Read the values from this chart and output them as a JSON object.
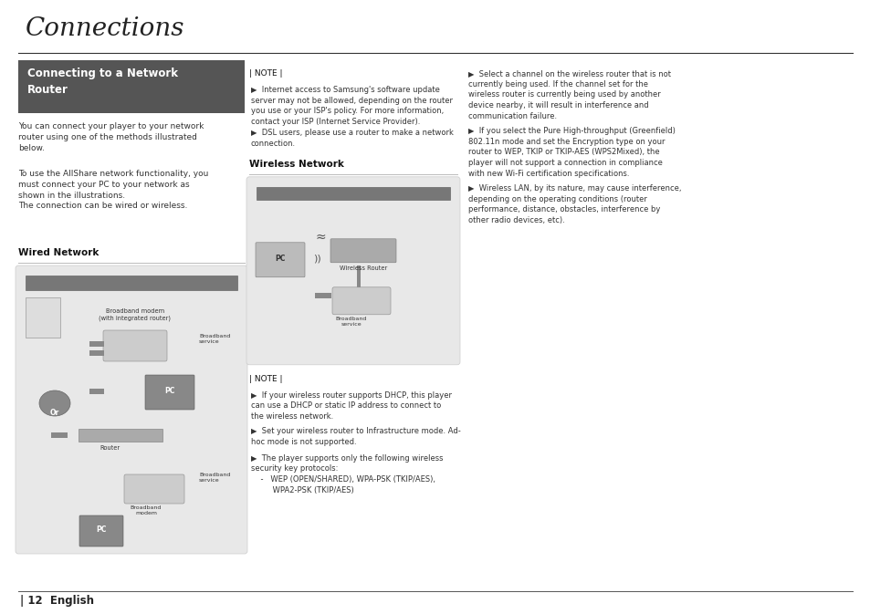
{
  "page_bg": "#ffffff",
  "title": "Connections",
  "title_font_size": 20,
  "title_color": "#222222",
  "header_bg": "#555555",
  "header_text_color": "#ffffff",
  "header_text": "Connecting to a Network\nRouter",
  "header_font_size": 8.5,
  "body_font_size": 6.5,
  "body_color": "#333333",
  "bold_color": "#111111",
  "note_label": "| NOTE |",
  "footer_text": "| 12  English",
  "wired_bg": "#e8e8e8",
  "wireless_bg": "#e8e8e8",
  "col1_body1": "You can connect your player to your network\nrouter using one of the methods illustrated\nbelow.",
  "col1_body2": "To use the AllShare network functionality, you\nmust connect your PC to your network as\nshown in the illustrations.\nThe connection can be wired or wireless.",
  "wired_label": "Wired Network",
  "wireless_label": "Wireless Network",
  "col2_note_items": [
    "Internet access to Samsung's software update\nserver may not be allowed, depending on the router\nyou use or your ISP's policy. For more information,\ncontact your ISP (Internet Service Provider).",
    "DSL users, please use a router to make a network\nconnection."
  ],
  "col2_note2_items": [
    "If your wireless router supports DHCP, this player\ncan use a DHCP or static IP address to connect to\nthe wireless network.",
    "Set your wireless router to Infrastructure mode. Ad-\nhoc mode is not supported.",
    "The player supports only the following wireless\nsecurity key protocols:\n    -   WEP (OPEN/SHARED), WPA-PSK (TKIP/AES),\n         WPA2-PSK (TKIP/AES)"
  ],
  "col3_items": [
    "Select a channel on the wireless router that is not\ncurrently being used. If the channel set for the\nwireless router is currently being used by another\ndevice nearby, it will result in interference and\ncommunication failure.",
    "If you select the Pure High-throughput (Greenfield)\n802.11n mode and set the Encryption type on your\nrouter to WEP, TKIP or TKIP-AES (WPS2Mixed), the\nplayer will not support a connection in compliance\nwith new Wi-Fi certification specifications.",
    "Wireless LAN, by its nature, may cause interference,\ndepending on the operating conditions (router\nperformance, distance, obstacles, interference by\nother radio devices, etc)."
  ]
}
